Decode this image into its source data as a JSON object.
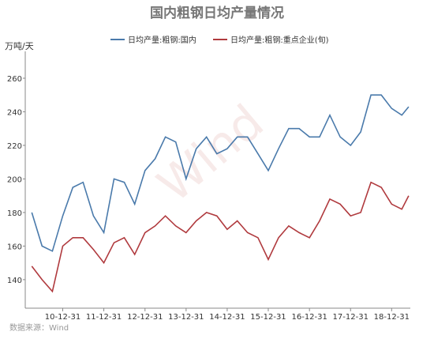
{
  "chart_data": {
    "type": "line",
    "title": "国内粗钢日均产量情况",
    "y_label": "万吨/天",
    "source": "数据来源：Wind",
    "watermark": "Wind",
    "x": [
      "10-03-31",
      "10-06-30",
      "10-09-30",
      "10-12-31",
      "11-03-31",
      "11-06-30",
      "11-09-30",
      "11-12-31",
      "12-03-31",
      "12-06-30",
      "12-09-30",
      "12-12-31",
      "13-03-31",
      "13-06-30",
      "13-09-30",
      "13-12-31",
      "14-03-31",
      "14-06-30",
      "14-09-30",
      "14-12-31",
      "15-03-31",
      "15-06-30",
      "15-09-30",
      "15-12-31",
      "16-03-31",
      "16-06-30",
      "16-09-30",
      "16-12-31",
      "17-03-31",
      "17-06-30",
      "17-09-30",
      "17-12-31",
      "18-03-31",
      "18-06-30",
      "18-09-30",
      "18-12-31",
      "19-03-31",
      "19-05-31"
    ],
    "series": [
      {
        "name": "日均产量:粗钢:国内",
        "color": "#4a7aab",
        "values": [
          180,
          160,
          157,
          178,
          195,
          198,
          178,
          168,
          200,
          198,
          185,
          205,
          212,
          225,
          222,
          200,
          218,
          225,
          215,
          218,
          225,
          225,
          215,
          205,
          218,
          230,
          230,
          225,
          225,
          238,
          225,
          220,
          228,
          250,
          250,
          242,
          238,
          243
        ]
      },
      {
        "name": "日均产量:粗钢:重点企业(旬)",
        "color": "#b03a3e",
        "values": [
          148,
          140,
          133,
          160,
          165,
          165,
          158,
          150,
          162,
          165,
          155,
          168,
          172,
          178,
          172,
          168,
          175,
          180,
          178,
          170,
          175,
          168,
          165,
          152,
          165,
          172,
          168,
          165,
          175,
          188,
          185,
          178,
          180,
          198,
          195,
          185,
          182,
          190
        ]
      }
    ],
    "xlim": [
      "10-02-01",
      "19-06-15"
    ],
    "xticks": [
      "10-12-31",
      "11-12-31",
      "12-12-31",
      "13-12-31",
      "14-12-31",
      "15-12-31",
      "16-12-31",
      "17-12-31",
      "18-12-31"
    ],
    "ylim": [
      123,
      276
    ],
    "yticks": [
      140,
      160,
      180,
      200,
      220,
      240,
      260
    ],
    "grid": false
  }
}
